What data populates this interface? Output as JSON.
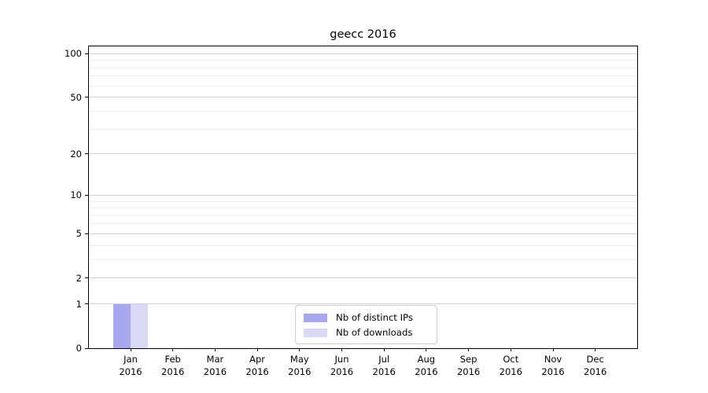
{
  "chart_data": {
    "type": "bar",
    "title": "geecc 2016",
    "categories": [
      "Jan",
      "Feb",
      "Mar",
      "Apr",
      "May",
      "Jun",
      "Jul",
      "Aug",
      "Sep",
      "Oct",
      "Nov",
      "Dec"
    ],
    "x_year_label": "2016",
    "series": [
      {
        "name": "Nb of distinct IPs",
        "color": "#a8a8f0",
        "values": [
          1,
          0,
          0,
          0,
          0,
          0,
          0,
          0,
          0,
          0,
          0,
          0
        ]
      },
      {
        "name": "Nb of downloads",
        "color": "#d9d9f6",
        "values": [
          1,
          0,
          0,
          0,
          0,
          0,
          0,
          0,
          0,
          0,
          0,
          0
        ]
      }
    ],
    "xlabel": "",
    "ylabel": "",
    "yscale": "log1p",
    "yticks": [
      0,
      1,
      2,
      5,
      10,
      20,
      50,
      100
    ],
    "yticks_minor": [
      3,
      4,
      6,
      7,
      8,
      9,
      30,
      40,
      60,
      70,
      80,
      90
    ],
    "ylim": [
      0,
      112
    ],
    "grid": true,
    "legend": {
      "position": "lower-center"
    },
    "colors": {
      "grid_major": "#d2d2d2",
      "grid_minor": "#ededed",
      "spine": "#000000",
      "background": "#ffffff"
    }
  }
}
